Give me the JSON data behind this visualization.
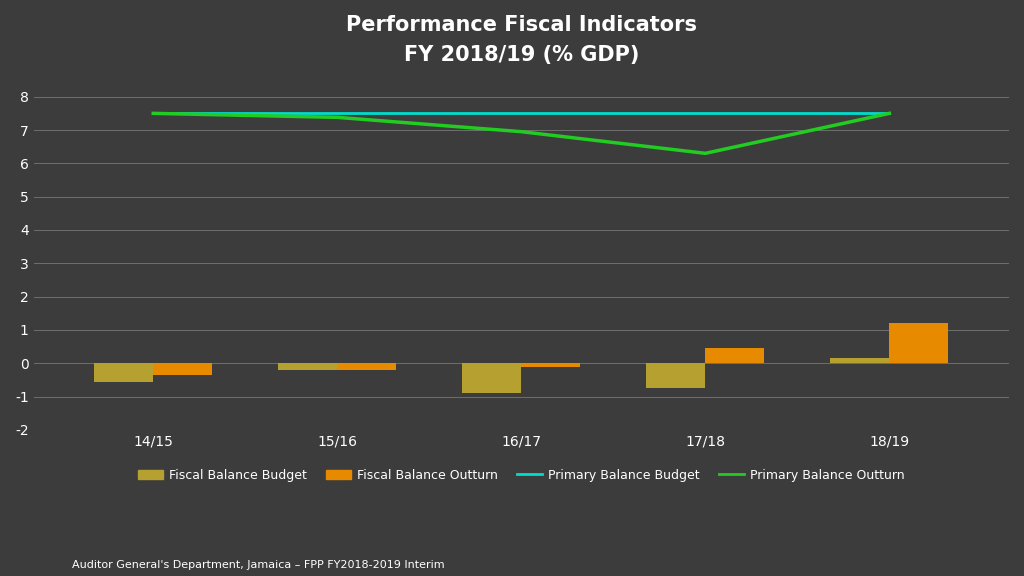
{
  "title_line1": "Performance Fiscal Indicators",
  "title_line2": "FY 2018/19 (% GDP)",
  "categories": [
    "14/15",
    "15/16",
    "16/17",
    "17/18",
    "18/19"
  ],
  "fiscal_balance_budget": [
    -0.55,
    -0.2,
    -0.9,
    -0.75,
    0.15
  ],
  "fiscal_balance_outturn": [
    -0.35,
    -0.2,
    -0.12,
    0.45,
    1.2
  ],
  "primary_balance_budget": [
    7.5,
    7.5,
    7.5,
    7.5,
    7.5
  ],
  "primary_balance_outturn": [
    7.5,
    7.38,
    6.95,
    6.3,
    7.5
  ],
  "bar_color_budget": "#b5a030",
  "bar_color_outturn": "#e88a00",
  "line_color_budget": "#00ddcc",
  "line_color_outturn": "#22cc22",
  "background_color": "#3c3c3c",
  "grid_color": "#777777",
  "text_color": "#ffffff",
  "ylim": [
    -2.0,
    8.5
  ],
  "yticks": [
    -2,
    -1,
    0,
    1,
    2,
    3,
    4,
    5,
    6,
    7,
    8
  ],
  "bar_width": 0.32,
  "footnote": "Auditor General's Department, Jamaica – FPP FY2018-2019 Interim",
  "legend_labels": [
    "Fiscal Balance Budget",
    "Fiscal Balance Outturn",
    "Primary Balance Budget",
    "Primary Balance Outturn"
  ]
}
